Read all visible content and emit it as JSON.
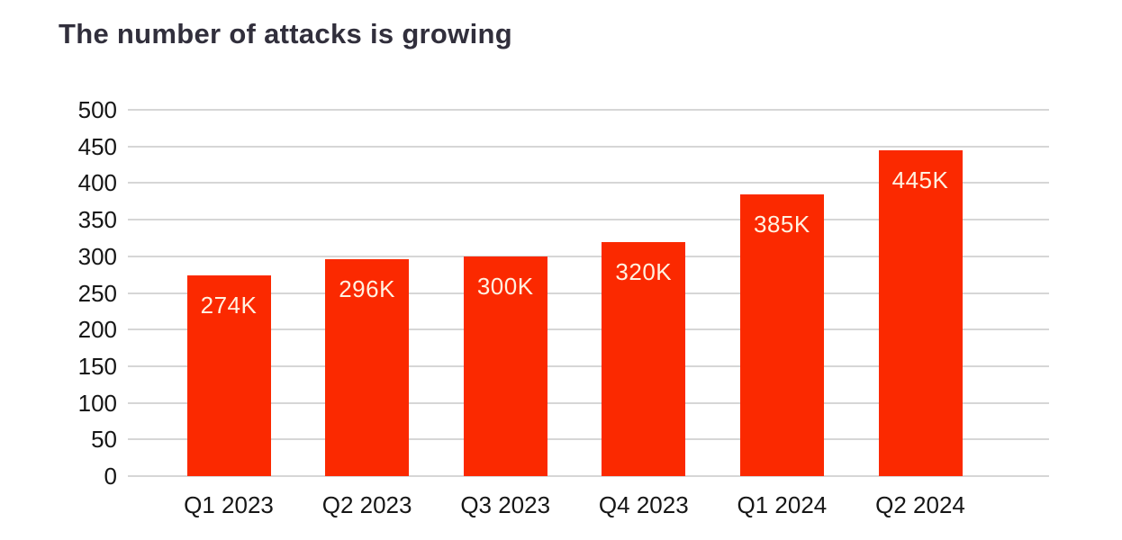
{
  "page": {
    "title": "The number of attacks is growing"
  },
  "chart_data": {
    "type": "bar",
    "title": "The number of attacks is growing",
    "categories": [
      "Q1 2023",
      "Q2 2023",
      "Q3 2023",
      "Q4 2023",
      "Q1 2024",
      "Q2 2024"
    ],
    "values": [
      274,
      296,
      300,
      320,
      385,
      445
    ],
    "data_labels": [
      "274K",
      "296K",
      "300K",
      "320K",
      "385K",
      "445K"
    ],
    "unit": "thousands of attacks",
    "xlabel": "",
    "ylabel": "",
    "ylim": [
      0,
      500
    ],
    "ytick_step": 50,
    "ytick_labels": [
      "0",
      "50",
      "100",
      "150",
      "200",
      "250",
      "300",
      "350",
      "400",
      "450",
      "500"
    ],
    "grid": "horizontal",
    "legend": "none",
    "colors": {
      "bar": "#FB2900",
      "bar_label": "#FFF1E0",
      "title": "#312F3C",
      "axis_text": "#161616",
      "gridline": "#D6D6D6",
      "background": "#FFFFFF"
    }
  }
}
